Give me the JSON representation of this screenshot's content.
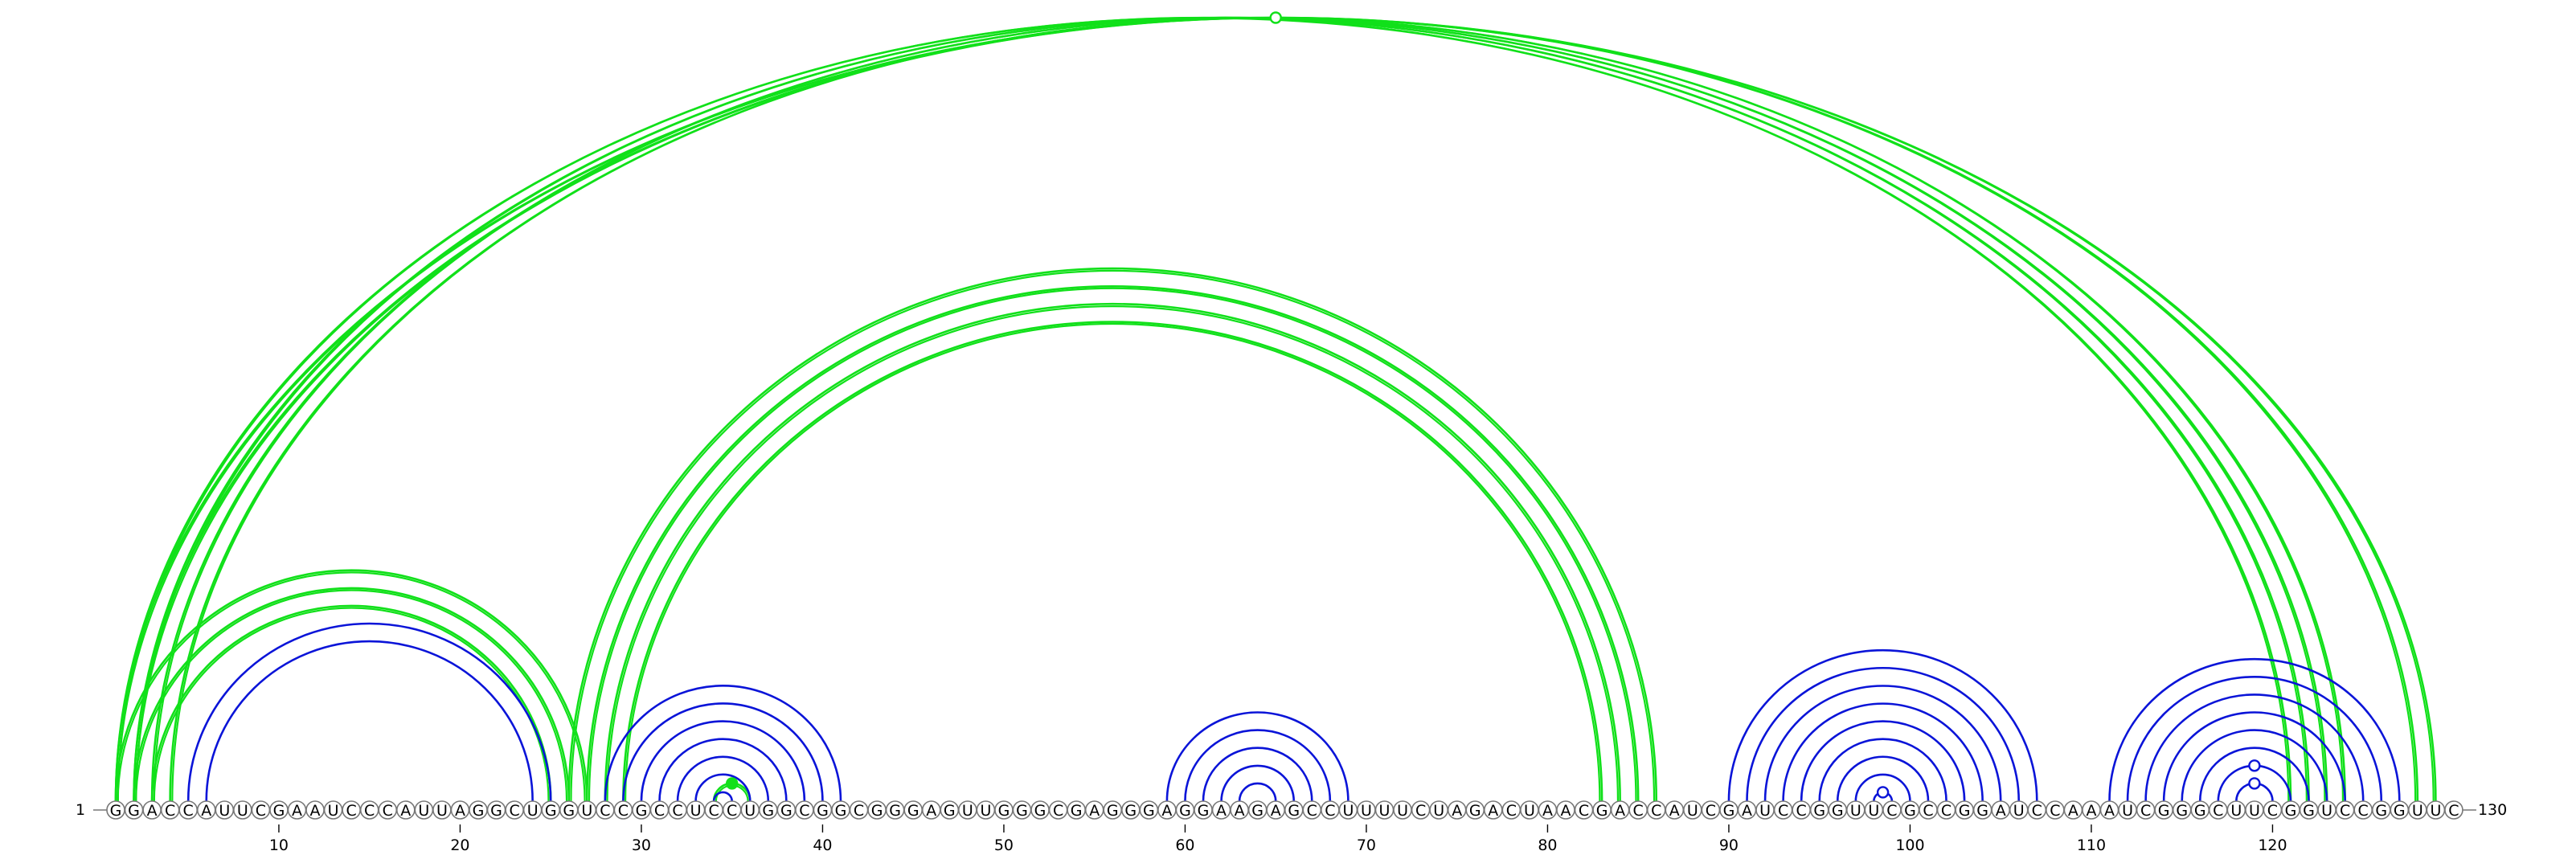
{
  "sequence": "GGACCAUUCGAAUCCCAUUAGGCUGGUCCGCCUCCUGGCGGCGGGAGUUGGGCGAGGGAGGAAGAGCCUUUUCUAGACUAACGACCAUCGAUCCGGUUCGCCGGAUCCAAAUCGGGCUUCGGUCCGGUUC",
  "start_label": "1",
  "end_label": "130",
  "ticks": [
    10,
    20,
    30,
    40,
    50,
    60,
    70,
    80,
    90,
    100,
    110,
    120
  ],
  "colors": {
    "blue": "#0a14d8",
    "green": "#11e01a"
  },
  "blue_stems": [
    {
      "pairs": [
        [
          5,
          25
        ],
        [
          6,
          24
        ]
      ]
    },
    {
      "pairs": [
        [
          28,
          41
        ],
        [
          29,
          40
        ],
        [
          30,
          39
        ],
        [
          31,
          38
        ],
        [
          32,
          37
        ],
        [
          33,
          36
        ],
        [
          34,
          35
        ]
      ]
    },
    {
      "pairs": [
        [
          59,
          69
        ],
        [
          60,
          68
        ],
        [
          61,
          67
        ],
        [
          62,
          66
        ],
        [
          63,
          65
        ]
      ]
    },
    {
      "pairs": [
        [
          90,
          107
        ],
        [
          91,
          106
        ],
        [
          92,
          105
        ],
        [
          93,
          104
        ],
        [
          94,
          103
        ],
        [
          95,
          102
        ],
        [
          96,
          101
        ],
        [
          97,
          100
        ],
        [
          98,
          99
        ]
      ]
    },
    {
      "pairs": [
        [
          111,
          127
        ],
        [
          112,
          126
        ],
        [
          113,
          125
        ],
        [
          114,
          124
        ],
        [
          115,
          123
        ],
        [
          116,
          122
        ],
        [
          117,
          121
        ],
        [
          118,
          120
        ]
      ]
    }
  ],
  "green_arcs": [
    [
      1,
      121
    ],
    [
      2,
      122
    ],
    [
      3,
      123
    ],
    [
      4,
      124
    ],
    [
      1,
      129
    ],
    [
      2,
      128
    ],
    [
      26,
      86
    ],
    [
      27,
      85
    ],
    [
      28,
      84
    ],
    [
      29,
      83
    ],
    [
      1,
      27
    ],
    [
      2,
      26
    ],
    [
      3,
      25
    ],
    [
      34,
      36
    ]
  ],
  "markers": [
    {
      "pair": [
        1,
        129
      ],
      "style": "open",
      "color": "green"
    },
    {
      "pair": [
        34,
        36
      ],
      "style": "filled",
      "color": "green"
    },
    {
      "pair": [
        117,
        121
      ],
      "style": "open",
      "color": "blue"
    },
    {
      "pair": [
        118,
        120
      ],
      "style": "open",
      "color": "blue"
    },
    {
      "pair": [
        98,
        99
      ],
      "style": "open",
      "color": "blue"
    }
  ]
}
